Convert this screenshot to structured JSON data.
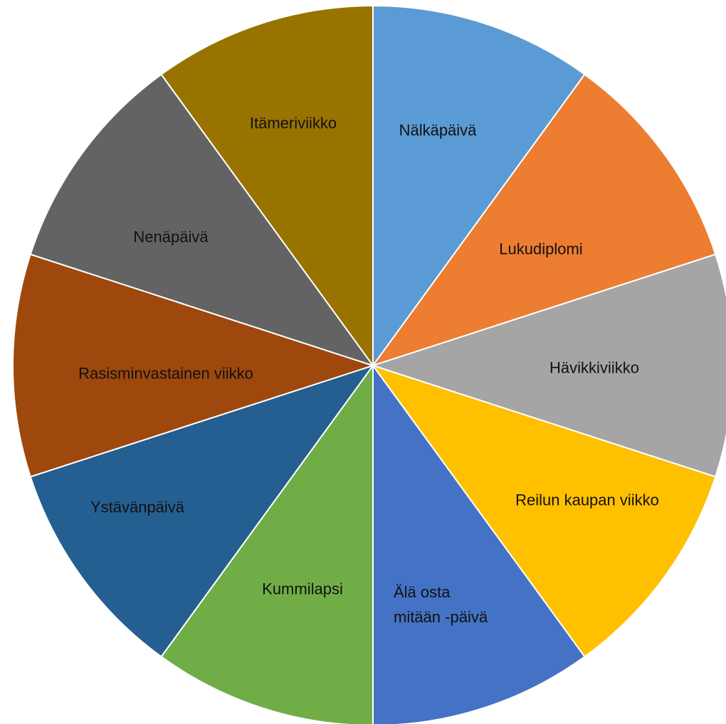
{
  "chart_data": {
    "type": "pie",
    "categories": [
      "Nälkäpäivä",
      "Lukudiplomi",
      "Hävikkiviikko",
      "Reilun kaupan viikko",
      "Älä osta mitään -päivä",
      "Kummilapsi",
      "Ystävänpäivä",
      "Rasisminvastainen viikko",
      "Nenäpäivä",
      "Itämeriviikko"
    ],
    "values": [
      10,
      10,
      10,
      10,
      10,
      10,
      10,
      10,
      10,
      10
    ],
    "colors": [
      "#5b9bd5",
      "#ed7d31",
      "#a5a5a5",
      "#ffc000",
      "#4472c4",
      "#70ad47",
      "#255e91",
      "#9e480e",
      "#636363",
      "#997300"
    ]
  }
}
